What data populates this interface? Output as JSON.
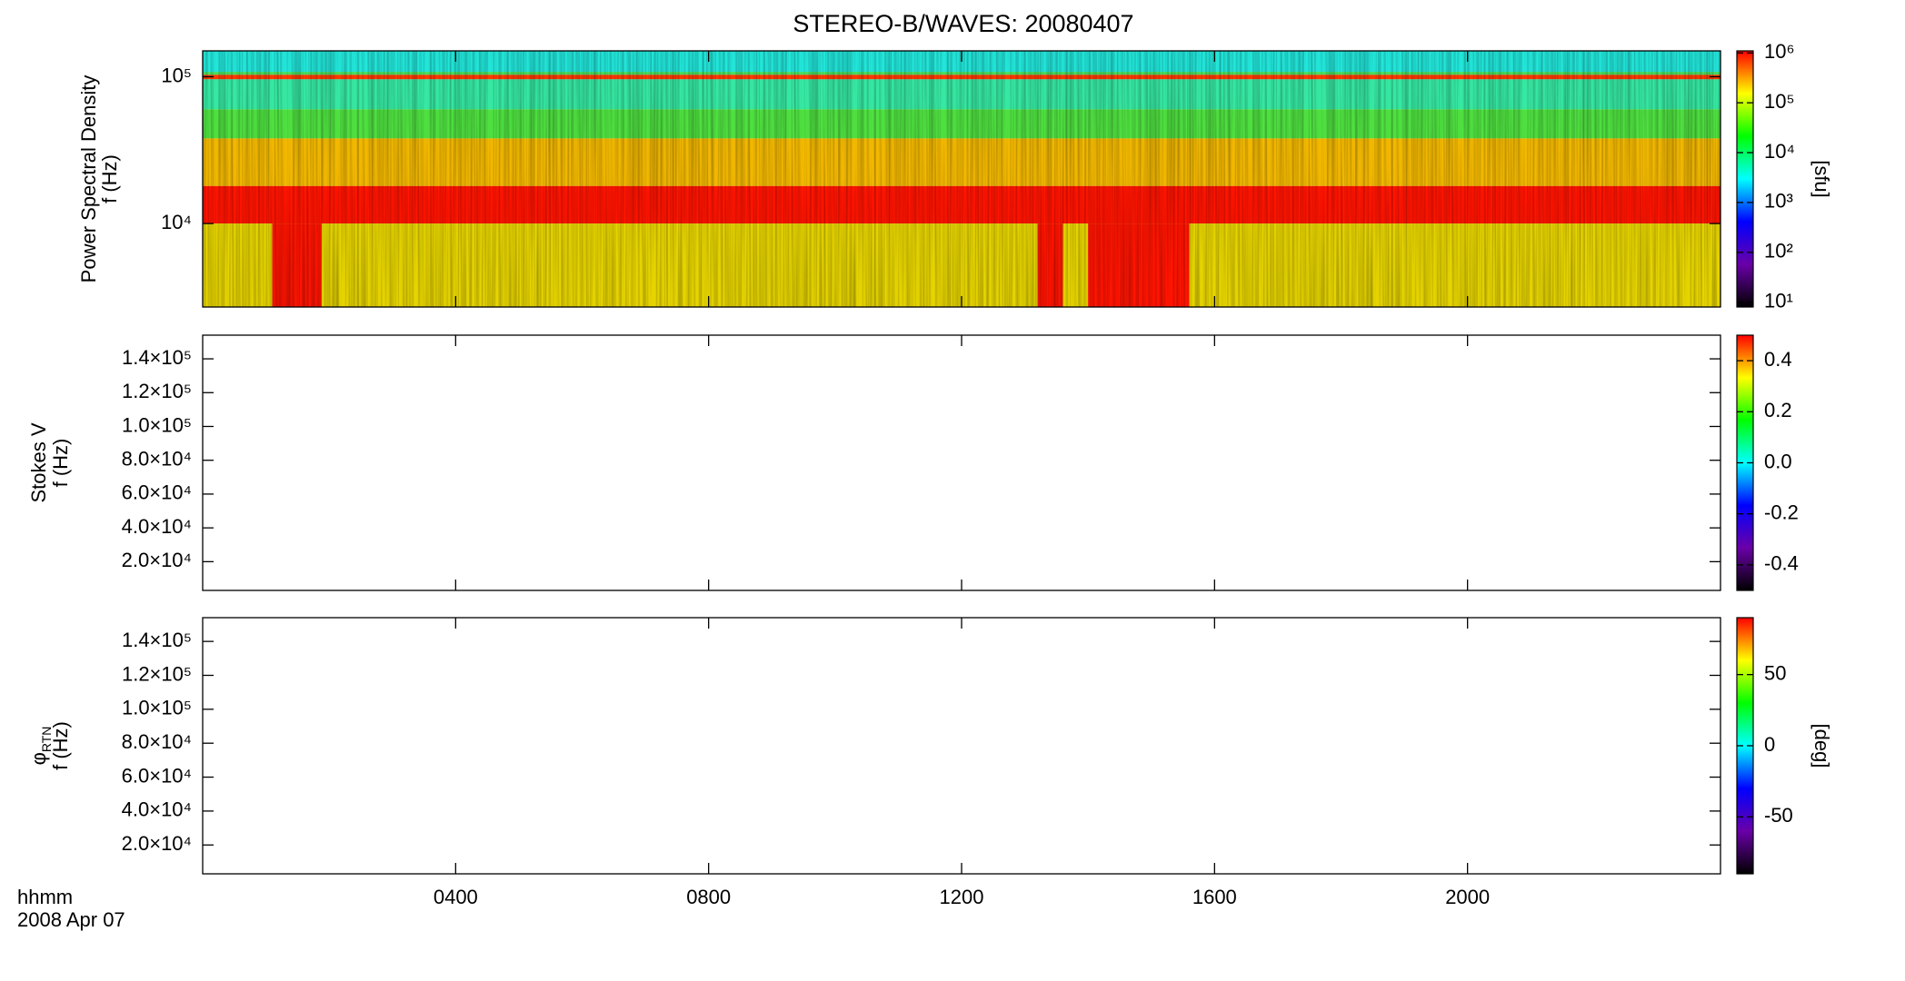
{
  "chart_data": [
    {
      "type": "heatmap",
      "title": "STEREO-B/WAVES: 20080407",
      "ylabel": [
        "Power Spectral Density",
        "f (Hz)"
      ],
      "ylog": true,
      "ylim": [
        2700,
        150000
      ],
      "yticks": [
        {
          "value": 10000,
          "label": "10⁴"
        },
        {
          "value": 100000,
          "label": "10⁵"
        }
      ],
      "bands": [
        {
          "from": 108000,
          "to": 150000,
          "color": "#22e6da"
        },
        {
          "from": 103000,
          "to": 108000,
          "color": "#48e060"
        },
        {
          "from": 96000,
          "to": 103000,
          "color": "#ff3a00"
        },
        {
          "from": 60000,
          "to": 96000,
          "color": "#36e8a2"
        },
        {
          "from": 38000,
          "to": 60000,
          "color": "#4fe040"
        },
        {
          "from": 18000,
          "to": 38000,
          "color": "#f2b800"
        },
        {
          "from": 10000,
          "to": 18000,
          "color": "#ff1400"
        },
        {
          "from": 2700,
          "to": 10000,
          "color": "#e6d400"
        }
      ],
      "burst_color": "#ff1400",
      "bursts": [
        {
          "start": 1.1,
          "end": 1.88,
          "from": 2700,
          "to": 10000
        },
        {
          "start": 13.2,
          "end": 13.6,
          "from": 2700,
          "to": 10000
        },
        {
          "start": 14.0,
          "end": 15.6,
          "from": 2700,
          "to": 10000
        }
      ],
      "colorbar": {
        "log": true,
        "lim": [
          8,
          1100000
        ],
        "label": "[sfu]",
        "ticks": [
          {
            "value": 10,
            "label": "10¹"
          },
          {
            "value": 100,
            "label": "10²"
          },
          {
            "value": 1000,
            "label": "10³"
          },
          {
            "value": 10000,
            "label": "10⁴"
          },
          {
            "value": 100000,
            "label": "10⁵"
          },
          {
            "value": 1000000,
            "label": "10⁶"
          }
        ]
      },
      "colormap": [
        "#000000",
        "#6a00a8",
        "#0000ff",
        "#00ffff",
        "#00ff00",
        "#ffff00",
        "#ff0000"
      ]
    },
    {
      "type": "heatmap",
      "ylabel": [
        "Stokes V",
        "f (Hz)"
      ],
      "ylog": false,
      "ylim": [
        3000,
        154000
      ],
      "yticks": [
        {
          "value": 20000,
          "label": "2.0×10⁴"
        },
        {
          "value": 40000,
          "label": "4.0×10⁴"
        },
        {
          "value": 60000,
          "label": "6.0×10⁴"
        },
        {
          "value": 80000,
          "label": "8.0×10⁴"
        },
        {
          "value": 100000,
          "label": "1.0×10⁵"
        },
        {
          "value": 120000,
          "label": "1.2×10⁵"
        },
        {
          "value": 140000,
          "label": "1.4×10⁵"
        }
      ],
      "bands": [],
      "bursts": [],
      "colorbar": {
        "log": false,
        "lim": [
          -0.5,
          0.5
        ],
        "ticks": [
          -0.4,
          -0.2,
          {
            "value": 0,
            "label": "0.0"
          },
          0.2,
          0.4
        ]
      },
      "colormap": [
        "#000000",
        "#6a00a8",
        "#0000ff",
        "#00ffff",
        "#00ff00",
        "#ffff00",
        "#ff0000"
      ]
    },
    {
      "type": "heatmap",
      "ylabel": [
        "φ",
        "f (Hz)"
      ],
      "ylabel_sub": "RTN",
      "ylog": false,
      "ylim": [
        3000,
        154000
      ],
      "yticks": [
        {
          "value": 20000,
          "label": "2.0×10⁴"
        },
        {
          "value": 40000,
          "label": "4.0×10⁴"
        },
        {
          "value": 60000,
          "label": "6.0×10⁴"
        },
        {
          "value": 80000,
          "label": "8.0×10⁴"
        },
        {
          "value": 100000,
          "label": "1.0×10⁵"
        },
        {
          "value": 120000,
          "label": "1.2×10⁵"
        },
        {
          "value": 140000,
          "label": "1.4×10⁵"
        }
      ],
      "bands": [],
      "bursts": [],
      "colorbar": {
        "log": false,
        "lim": [
          -90,
          90
        ],
        "label": "[deg]",
        "ticks": [
          -50,
          0,
          50
        ]
      },
      "colormap": [
        "#000000",
        "#6a00a8",
        "#0000ff",
        "#00ffff",
        "#00ff00",
        "#ffff00",
        "#ff0000"
      ],
      "xlabel": "hhmm",
      "date": "2008 Apr 07",
      "xlim": [
        0,
        24
      ],
      "xticks": [
        {
          "value": 4,
          "label": "0400"
        },
        {
          "value": 8,
          "label": "0800"
        },
        {
          "value": 12,
          "label": "1200"
        },
        {
          "value": 16,
          "label": "1600"
        },
        {
          "value": 20,
          "label": "2000"
        }
      ]
    }
  ]
}
